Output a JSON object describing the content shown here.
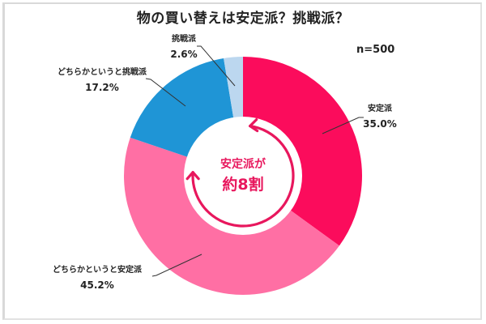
{
  "title": "物の買い替えは安定派？挑戦派？",
  "sample_size": "n=500",
  "center_message": {
    "line1": "安定派が",
    "line2": "約8割",
    "color": "#e8175d"
  },
  "labels": [
    {
      "name": "安定派",
      "pct": "35.0%"
    },
    {
      "name": "どちらかというと安定派",
      "pct": "45.2%"
    },
    {
      "name": "どちらかというと挑戦派",
      "pct": "17.2%"
    },
    {
      "name": "挑戦派",
      "pct": "2.6%"
    }
  ],
  "chart_data": {
    "type": "pie",
    "subtype": "donut",
    "title": "物の買い替えは安定派？挑戦派？",
    "annotation": "n=500",
    "center_annotation": "安定派が 約8割",
    "categories": [
      "安定派",
      "どちらかというと安定派",
      "どちらかというと挑戦派",
      "挑戦派"
    ],
    "values": [
      35.0,
      45.2,
      17.2,
      2.6
    ],
    "unit": "%",
    "colors": [
      "#fb0c5c",
      "#ff6fa4",
      "#1f95d6",
      "#bcd7ef"
    ],
    "start_angle": "12 o'clock",
    "direction": "clockwise",
    "legend": "none (direct labels with leader lines)"
  }
}
